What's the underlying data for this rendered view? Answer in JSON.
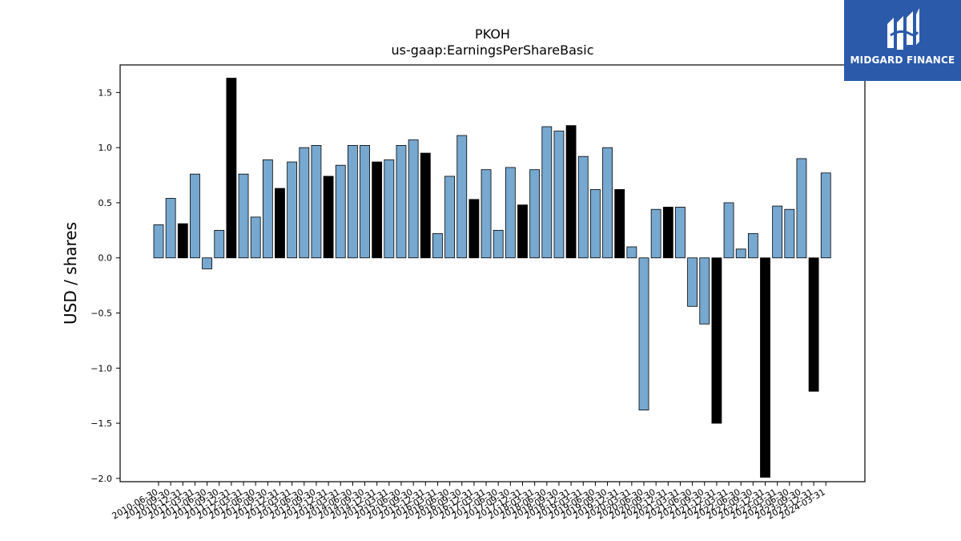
{
  "logo": {
    "text": "MIDGARD FINANCE",
    "bg": "#2b5aab"
  },
  "chart_data": {
    "type": "bar",
    "title": "PKOH",
    "subtitle": "us-gaap:EarningsPerShareBasic",
    "xlabel": "",
    "ylabel": "USD / shares",
    "ylim": [
      -2.03,
      1.75
    ],
    "yticks": [
      -2.0,
      -1.5,
      -1.0,
      -0.5,
      0.0,
      0.5,
      1.0,
      1.5
    ],
    "grid": false,
    "legend": "none",
    "colors": {
      "quarterly": "#76a8d0",
      "annual": "#000000"
    },
    "categories": [
      "2010-06-30",
      "2010-09-30",
      "2010-12-31",
      "2011-03-31",
      "2011-06-30",
      "2011-09-30",
      "2011-12-31",
      "2012-03-31",
      "2012-06-30",
      "2012-09-30",
      "2012-12-31",
      "2013-03-31",
      "2013-06-30",
      "2013-09-30",
      "2013-12-31",
      "2014-03-31",
      "2014-06-30",
      "2014-09-30",
      "2014-12-31",
      "2015-03-31",
      "2015-06-30",
      "2015-09-30",
      "2015-12-31",
      "2016-03-31",
      "2016-06-30",
      "2016-09-30",
      "2016-12-31",
      "2017-03-31",
      "2017-06-30",
      "2017-09-30",
      "2017-12-31",
      "2018-03-31",
      "2018-06-30",
      "2018-09-30",
      "2018-12-31",
      "2019-03-31",
      "2019-06-30",
      "2019-09-30",
      "2019-12-31",
      "2020-03-31",
      "2020-06-30",
      "2020-09-30",
      "2020-12-31",
      "2021-03-31",
      "2021-06-30",
      "2021-09-30",
      "2021-12-31",
      "2022-03-31",
      "2022-06-30",
      "2022-09-30",
      "2022-12-31",
      "2023-03-31",
      "2023-06-30",
      "2023-09-30",
      "2023-12-31",
      "2024-03-31"
    ],
    "tick_labels": [
      "2010-06-30",
      "2010-09-30",
      "2010-12-31",
      "2011-03-31",
      "2011-06-30",
      "2011-09-30",
      "2011-12-31",
      "2012-03-31",
      "2012-06-30",
      "2012-09-30",
      "2012-12-31",
      "2013-03-31",
      "2013-06-30",
      "2013-09-30",
      "2013-12-31",
      "2014-03-31",
      "2014-06-30",
      "2014-09-30",
      "2014-12-31",
      "2015-03-31",
      "2015-06-30",
      "2015-09-30",
      "2015-12-31",
      "2016-03-31",
      "2016-06-30",
      "2016-09-30",
      "2016-12-31",
      "2017-03-31",
      "2017-06-30",
      "2017-09-30",
      "2017-12-31",
      "2018-03-31",
      "2018-06-30",
      "2018-09-30",
      "2018-12-31",
      "2019-03-31",
      "2019-06-30",
      "2019-09-30",
      "2019-12-31",
      "2020-03-31",
      "2020-06-30",
      "2020-09-30",
      "2020-12-31",
      "2021-03-31",
      "2021-06-30",
      "2021-09-30",
      "2021-12-31",
      "2022-03-31",
      "2022-06-30",
      "2022-09-30",
      "2022-12-31",
      "2023-03-31",
      "2023-06-30",
      "2023-09-30",
      "2023-12-31",
      "2024-03-31"
    ],
    "values": [
      0.3,
      0.54,
      0.31,
      0.76,
      -0.1,
      0.25,
      1.63,
      0.76,
      0.37,
      0.89,
      0.63,
      0.87,
      1.0,
      1.02,
      0.74,
      0.84,
      1.02,
      1.02,
      0.87,
      0.89,
      1.02,
      1.07,
      0.95,
      0.22,
      0.74,
      1.11,
      0.53,
      0.8,
      0.25,
      0.82,
      0.48,
      0.8,
      1.19,
      1.15,
      1.2,
      0.92,
      0.62,
      1.0,
      0.62,
      0.1,
      -1.38,
      0.44,
      0.46,
      0.46,
      -0.44,
      -0.6,
      -1.5,
      0.5,
      0.08,
      0.22,
      -1.99,
      0.47,
      0.44,
      0.9,
      -1.21,
      0.77
    ],
    "annual": [
      false,
      false,
      true,
      false,
      false,
      false,
      true,
      false,
      false,
      false,
      true,
      false,
      false,
      false,
      true,
      false,
      false,
      false,
      true,
      false,
      false,
      false,
      true,
      false,
      false,
      false,
      true,
      false,
      false,
      false,
      true,
      false,
      false,
      false,
      true,
      false,
      false,
      false,
      true,
      false,
      false,
      false,
      true,
      false,
      false,
      false,
      true,
      false,
      false,
      false,
      true,
      false,
      false,
      false,
      true,
      false
    ]
  }
}
